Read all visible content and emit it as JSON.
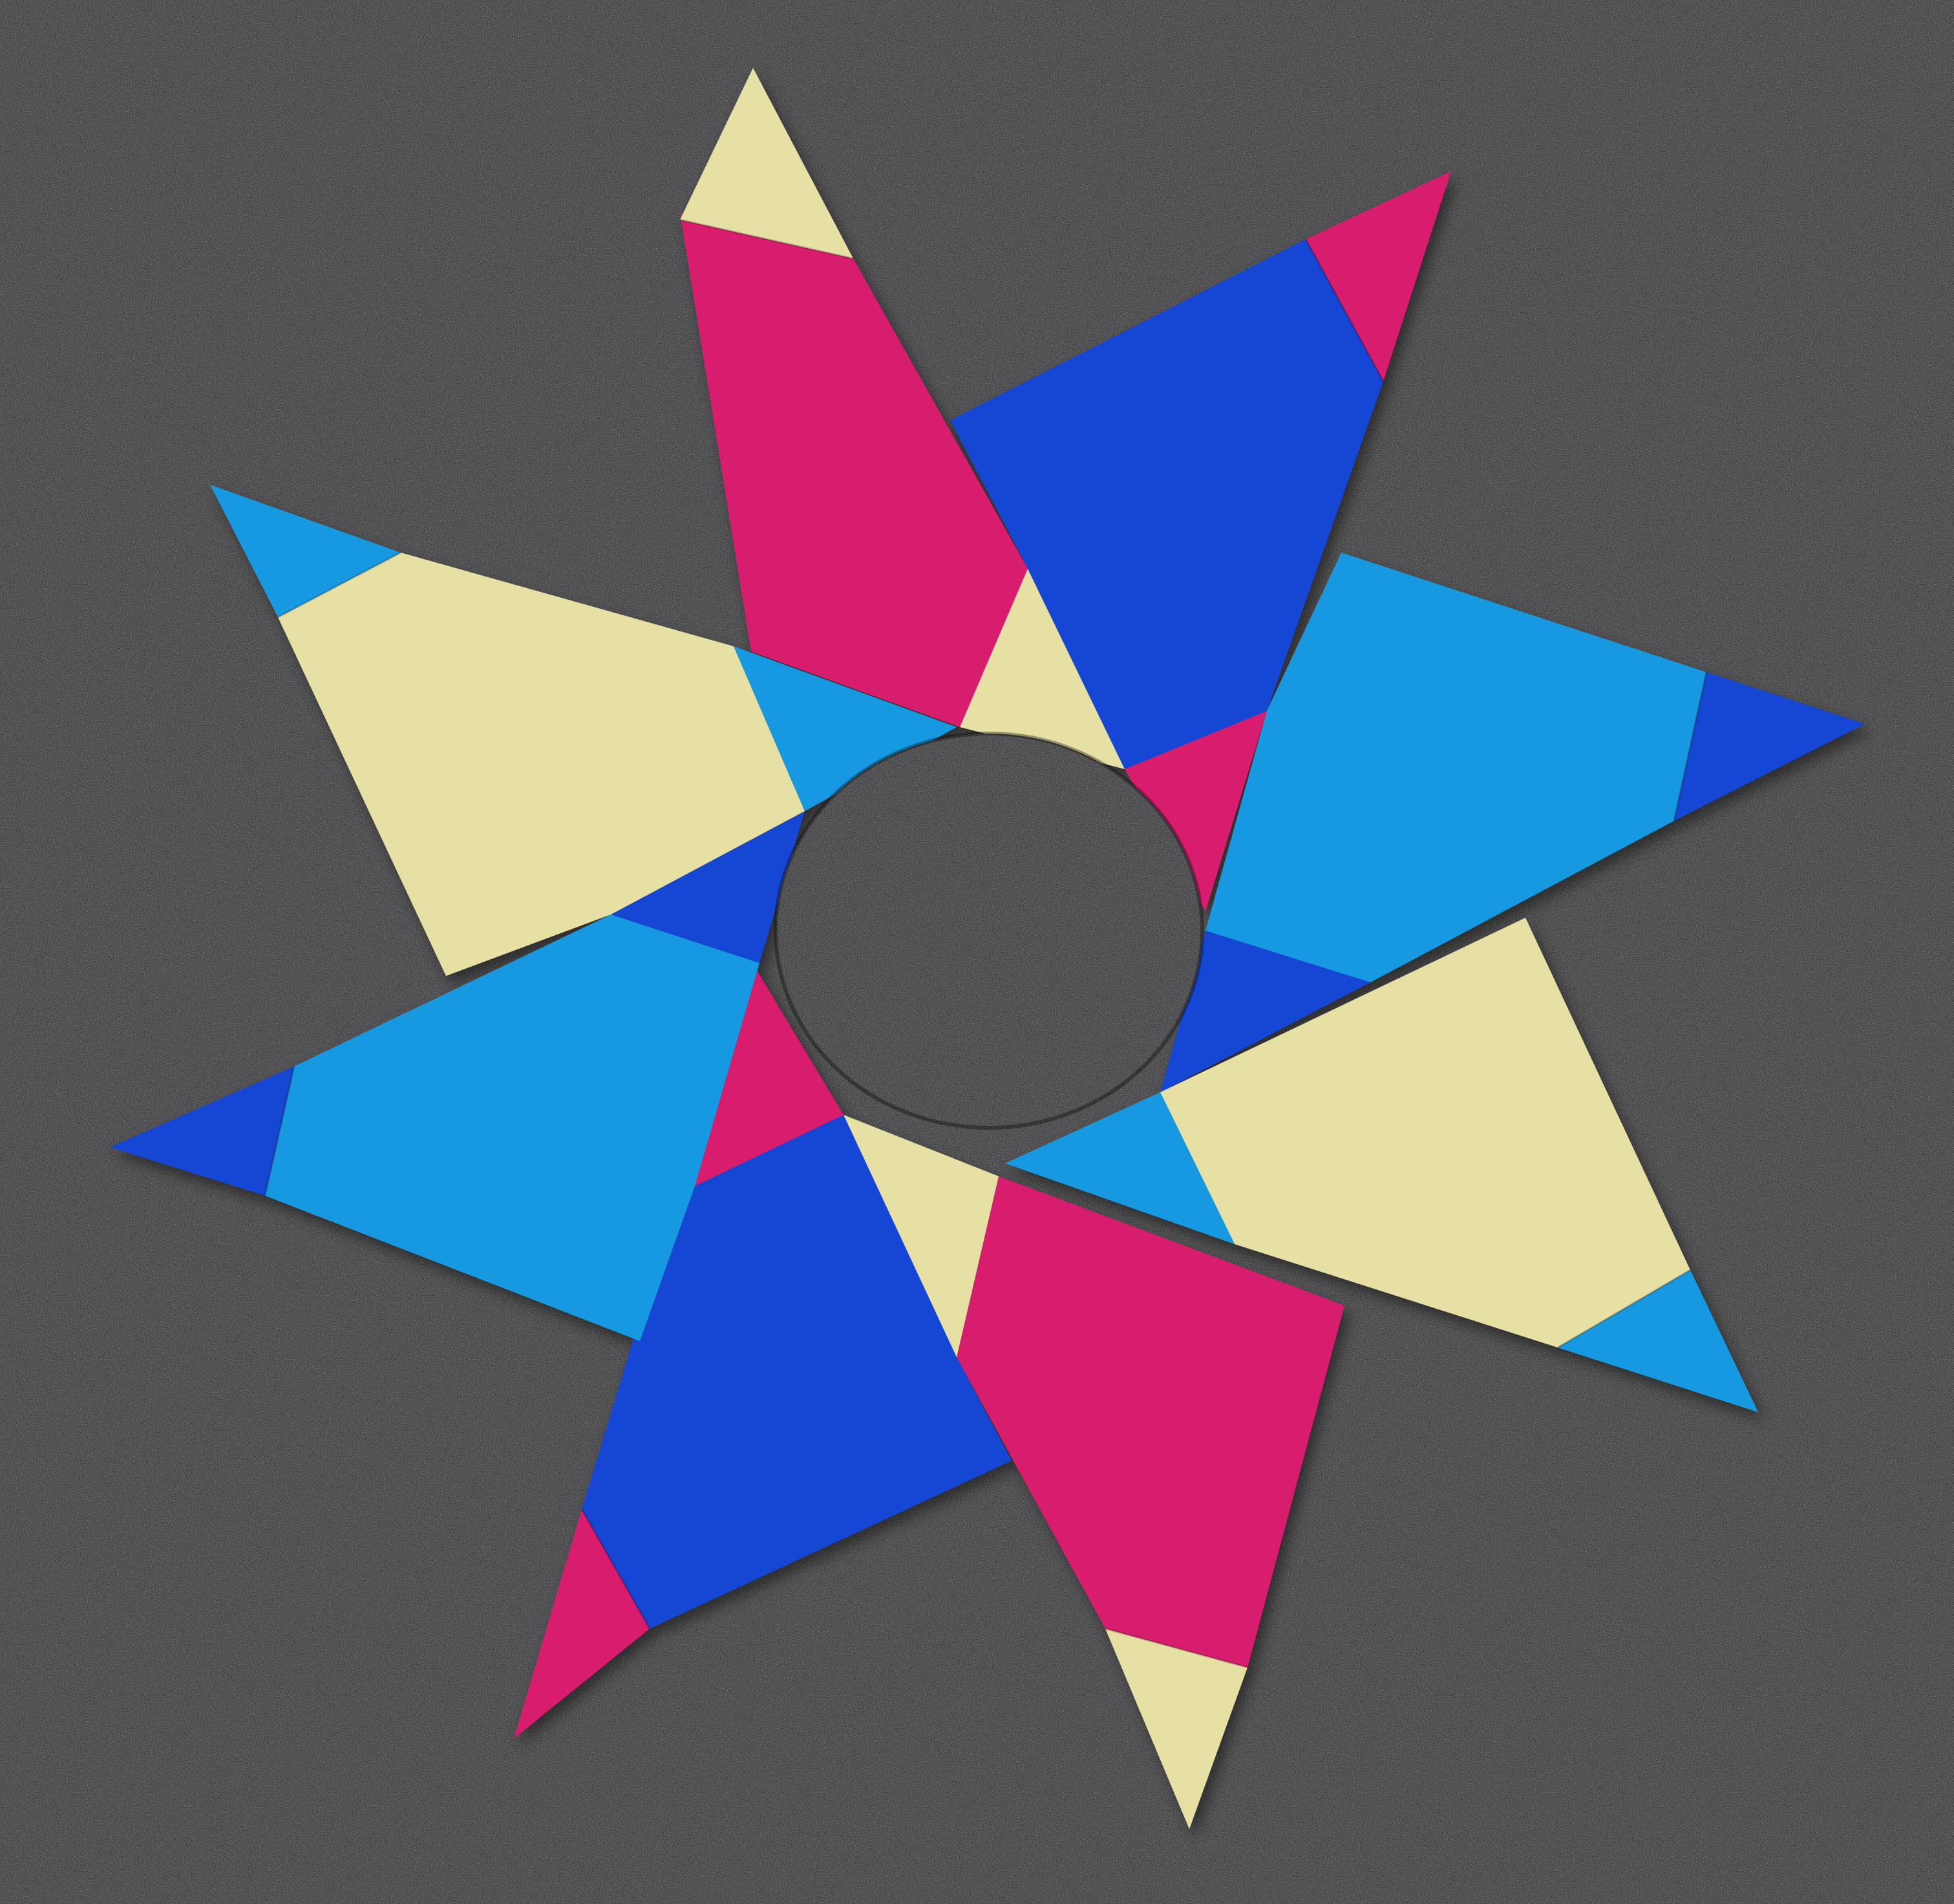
{
  "photo": {
    "subject": "origami-eight-pointed-star",
    "background_color": "#3a3a3c",
    "palette": {
      "magenta": "#d81b6e",
      "royal_blue": "#1446d4",
      "sky_blue": "#1899e0",
      "cream": "#e6e0a4"
    }
  }
}
